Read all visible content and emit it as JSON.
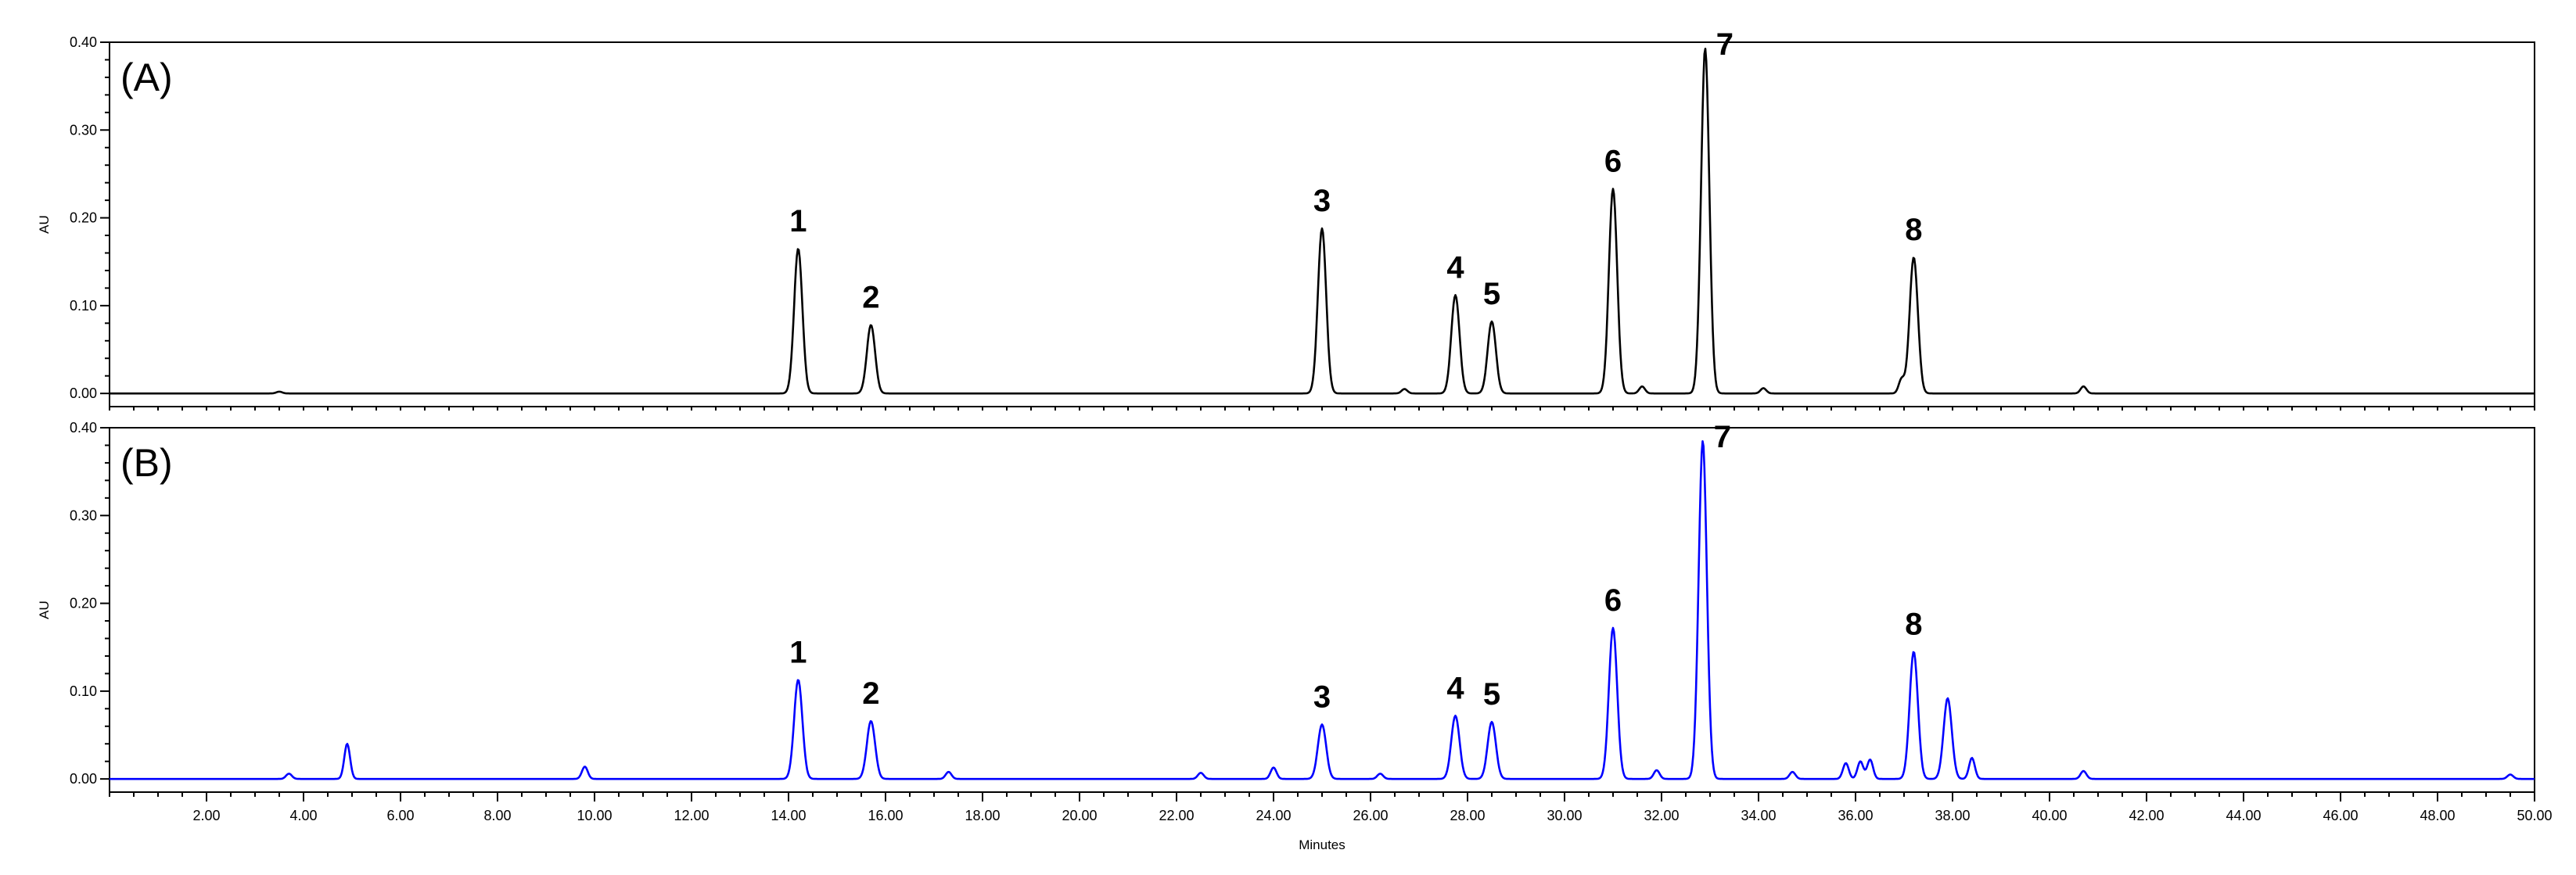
{
  "chart_data": [
    {
      "type": "line",
      "panel_label": "(A)",
      "ylabel": "AU",
      "xlabel": "",
      "xlim": [
        0,
        50
      ],
      "ylim": [
        -0.015,
        0.4
      ],
      "yticks": [
        "0.00",
        "0.10",
        "0.20",
        "0.30",
        "0.40"
      ],
      "color": "#000000",
      "baseline": 0.0,
      "peaks": [
        {
          "label": "1",
          "x": 14.2,
          "y": 0.165
        },
        {
          "label": "2",
          "x": 15.7,
          "y": 0.078
        },
        {
          "label": "3",
          "x": 25.0,
          "y": 0.188
        },
        {
          "label": "4",
          "x": 27.75,
          "y": 0.112
        },
        {
          "label": "5",
          "x": 28.5,
          "y": 0.082
        },
        {
          "label": "6",
          "x": 31.0,
          "y": 0.233
        },
        {
          "label": "7",
          "x": 32.9,
          "y": 0.393
        },
        {
          "label": "8",
          "x": 37.2,
          "y": 0.155
        }
      ],
      "minor_peaks": [
        {
          "x": 3.5,
          "y": 0.002
        },
        {
          "x": 26.7,
          "y": 0.005
        },
        {
          "x": 31.6,
          "y": 0.008
        },
        {
          "x": 34.1,
          "y": 0.006
        },
        {
          "x": 36.95,
          "y": 0.016
        },
        {
          "x": 40.7,
          "y": 0.008
        }
      ]
    },
    {
      "type": "line",
      "panel_label": "(B)",
      "ylabel": "AU",
      "xlabel": "Minutes",
      "xlim": [
        0,
        50
      ],
      "ylim": [
        -0.015,
        0.4
      ],
      "yticks": [
        "0.00",
        "0.10",
        "0.20",
        "0.30",
        "0.40"
      ],
      "xticks": [
        "2.00",
        "4.00",
        "6.00",
        "8.00",
        "10.00",
        "12.00",
        "14.00",
        "16.00",
        "18.00",
        "20.00",
        "22.00",
        "24.00",
        "26.00",
        "28.00",
        "30.00",
        "32.00",
        "34.00",
        "36.00",
        "38.00",
        "40.00",
        "42.00",
        "44.00",
        "46.00",
        "48.00",
        "50.00"
      ],
      "color": "#0000ff",
      "baseline": 0.0,
      "peaks": [
        {
          "label": "1",
          "x": 14.2,
          "y": 0.113
        },
        {
          "label": "2",
          "x": 15.7,
          "y": 0.066
        },
        {
          "label": "3",
          "x": 25.0,
          "y": 0.062
        },
        {
          "label": "4",
          "x": 27.75,
          "y": 0.072
        },
        {
          "label": "5",
          "x": 28.5,
          "y": 0.065
        },
        {
          "label": "6",
          "x": 31.0,
          "y": 0.172
        },
        {
          "label": "7",
          "x": 32.85,
          "y": 0.385
        },
        {
          "label": "8",
          "x": 37.2,
          "y": 0.145
        }
      ],
      "minor_peaks": [
        {
          "x": 3.7,
          "y": 0.006
        },
        {
          "x": 4.9,
          "y": 0.04
        },
        {
          "x": 9.8,
          "y": 0.014
        },
        {
          "x": 17.3,
          "y": 0.008
        },
        {
          "x": 22.5,
          "y": 0.007
        },
        {
          "x": 24.0,
          "y": 0.013
        },
        {
          "x": 26.2,
          "y": 0.006
        },
        {
          "x": 31.9,
          "y": 0.01
        },
        {
          "x": 34.7,
          "y": 0.008
        },
        {
          "x": 35.8,
          "y": 0.018
        },
        {
          "x": 36.1,
          "y": 0.02
        },
        {
          "x": 36.3,
          "y": 0.022
        },
        {
          "x": 37.9,
          "y": 0.092
        },
        {
          "x": 38.4,
          "y": 0.024
        },
        {
          "x": 40.7,
          "y": 0.009
        },
        {
          "x": 49.5,
          "y": 0.005
        }
      ]
    }
  ]
}
